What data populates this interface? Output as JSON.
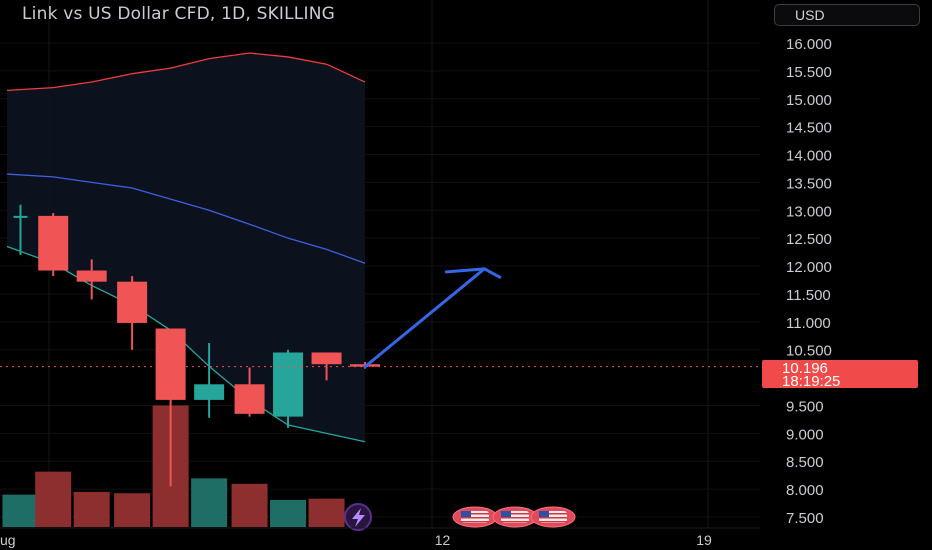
{
  "header": {
    "title": "Link vs US Dollar CFD, 1D, SKILLING",
    "currency": "USD"
  },
  "last_price": {
    "value": "10.196",
    "countdown": "18:19:25"
  },
  "colors": {
    "up": "#26a69a",
    "down": "#f05454",
    "volume_up": "#1e6e66",
    "volume_down": "#8e2f2f",
    "upper_band": "#f03c3c",
    "middle_band": "#3f5fe0",
    "lower_band": "#26a69a",
    "arrow": "#3566e8",
    "price_line": "#f05454",
    "price_tag": "#f04a4a"
  },
  "icons": {
    "lightning": "lightning-icon",
    "flag": "us-flag-icon"
  },
  "chart_data": {
    "type": "candlestick",
    "title": "Link vs US Dollar CFD, 1D, SKILLING",
    "y_axis": {
      "ticks": [
        "16.000",
        "15.500",
        "15.000",
        "14.500",
        "14.000",
        "13.500",
        "13.000",
        "12.500",
        "12.000",
        "11.500",
        "11.000",
        "10.500",
        "9.500",
        "9.000",
        "8.500",
        "8.000",
        "7.500"
      ],
      "range": [
        7.4,
        16.45
      ],
      "side": "right"
    },
    "x_axis": {
      "ticks": [
        {
          "label": "ug",
          "day": 0.15
        },
        {
          "label": "12",
          "day": 11.5
        },
        {
          "label": "19",
          "day": 18.5
        }
      ],
      "range": [
        0,
        19.6
      ]
    },
    "candles": [
      {
        "day": 0.35,
        "open": 12.9,
        "high": 13.1,
        "low": 12.2,
        "close": 12.9
      },
      {
        "day": 1.2,
        "open": 12.9,
        "high": 12.95,
        "low": 11.82,
        "close": 11.92
      },
      {
        "day": 2.2,
        "open": 11.92,
        "high": 12.12,
        "low": 11.4,
        "close": 11.72
      },
      {
        "day": 3.25,
        "open": 11.72,
        "high": 11.82,
        "low": 10.5,
        "close": 10.98
      },
      {
        "day": 4.25,
        "open": 10.88,
        "high": 10.88,
        "low": 8.05,
        "close": 9.6
      },
      {
        "day": 5.25,
        "open": 9.6,
        "high": 10.62,
        "low": 9.28,
        "close": 9.88
      },
      {
        "day": 6.3,
        "open": 9.88,
        "high": 10.18,
        "low": 9.3,
        "close": 9.35
      },
      {
        "day": 7.3,
        "open": 9.3,
        "high": 10.5,
        "low": 9.1,
        "close": 10.45
      },
      {
        "day": 8.3,
        "open": 10.45,
        "high": 10.45,
        "low": 9.95,
        "close": 10.24
      },
      {
        "day": 9.3,
        "open": 10.24,
        "high": 10.28,
        "low": 10.16,
        "close": 10.196
      }
    ],
    "volume": [
      {
        "day": 0.35,
        "level": 0.24,
        "dir": "up"
      },
      {
        "day": 1.2,
        "level": 0.41,
        "dir": "down"
      },
      {
        "day": 2.2,
        "level": 0.26,
        "dir": "down"
      },
      {
        "day": 3.25,
        "level": 0.25,
        "dir": "down"
      },
      {
        "day": 4.25,
        "level": 0.9,
        "dir": "down"
      },
      {
        "day": 5.25,
        "level": 0.36,
        "dir": "up"
      },
      {
        "day": 6.3,
        "level": 0.32,
        "dir": "down"
      },
      {
        "day": 7.3,
        "level": 0.2,
        "dir": "up"
      },
      {
        "day": 8.3,
        "level": 0.21,
        "dir": "down"
      }
    ],
    "bands": {
      "upper": [
        [
          0,
          15.15
        ],
        [
          1.2,
          15.2
        ],
        [
          2.2,
          15.3
        ],
        [
          3.25,
          15.45
        ],
        [
          4.25,
          15.55
        ],
        [
          5.25,
          15.72
        ],
        [
          6.3,
          15.82
        ],
        [
          7.3,
          15.75
        ],
        [
          8.3,
          15.62
        ],
        [
          9.3,
          15.3
        ]
      ],
      "middle": [
        [
          0,
          13.65
        ],
        [
          1.2,
          13.6
        ],
        [
          2.2,
          13.5
        ],
        [
          3.25,
          13.4
        ],
        [
          4.25,
          13.2
        ],
        [
          5.25,
          13.0
        ],
        [
          6.3,
          12.75
        ],
        [
          7.3,
          12.5
        ],
        [
          8.3,
          12.3
        ],
        [
          9.3,
          12.05
        ]
      ],
      "lower": [
        [
          0,
          12.35
        ],
        [
          1.2,
          12.05
        ],
        [
          2.2,
          11.65
        ],
        [
          3.25,
          11.3
        ],
        [
          4.25,
          10.85
        ],
        [
          5.25,
          10.2
        ],
        [
          6.3,
          9.6
        ],
        [
          7.3,
          9.15
        ],
        [
          8.3,
          9.0
        ],
        [
          9.3,
          8.85
        ]
      ]
    },
    "projection_arrow": [
      [
        9.3,
        10.196
      ],
      [
        12.4,
        11.95
      ],
      [
        12.8,
        11.8
      ]
    ],
    "last_price": 10.196,
    "grid": true
  }
}
